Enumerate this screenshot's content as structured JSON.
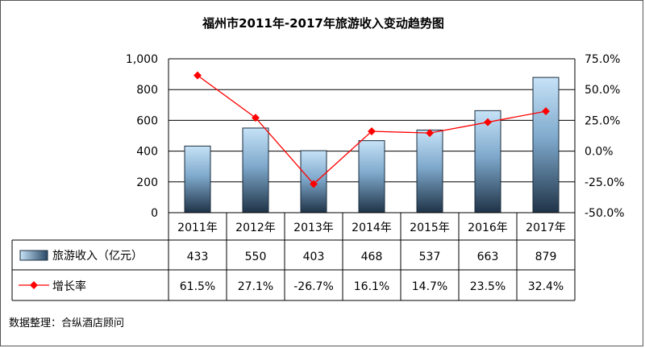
{
  "chart_data": {
    "type": "bar",
    "title": "福州市2011年-2017年旅游收入变动趋势图",
    "categories": [
      "2011年",
      "2012年",
      "2013年",
      "2014年",
      "2015年",
      "2016年",
      "2017年"
    ],
    "series": [
      {
        "name": "旅游收入（亿元）",
        "kind": "bar",
        "axis": "left",
        "values": [
          433,
          550,
          403,
          468,
          537,
          663,
          879
        ],
        "labels": [
          "433",
          "550",
          "403",
          "468",
          "537",
          "663",
          "879"
        ]
      },
      {
        "name": "增长率",
        "kind": "line",
        "axis": "right",
        "values": [
          61.5,
          27.1,
          -26.7,
          16.1,
          14.7,
          23.5,
          32.4
        ],
        "labels": [
          "61.5%",
          "27.1%",
          "-26.7%",
          "16.1%",
          "14.7%",
          "23.5%",
          "32.4%"
        ]
      }
    ],
    "y_left": {
      "min": 0,
      "max": 1000,
      "ticks": [
        "0",
        "200",
        "400",
        "600",
        "800",
        "1,000"
      ]
    },
    "y_right": {
      "min": -50,
      "max": 75,
      "ticks": [
        "-50.0%",
        "-25.0%",
        "0.0%",
        "25.0%",
        "50.0%",
        "75.0%"
      ]
    },
    "legend": "data-table",
    "grid": true
  },
  "footer": {
    "source": "数据整理：合纵酒店顾问"
  },
  "colors": {
    "bar_top": "#c6e2f7",
    "bar_bottom": "#1f3347",
    "line": "#ff0000",
    "grid": "#000000"
  }
}
